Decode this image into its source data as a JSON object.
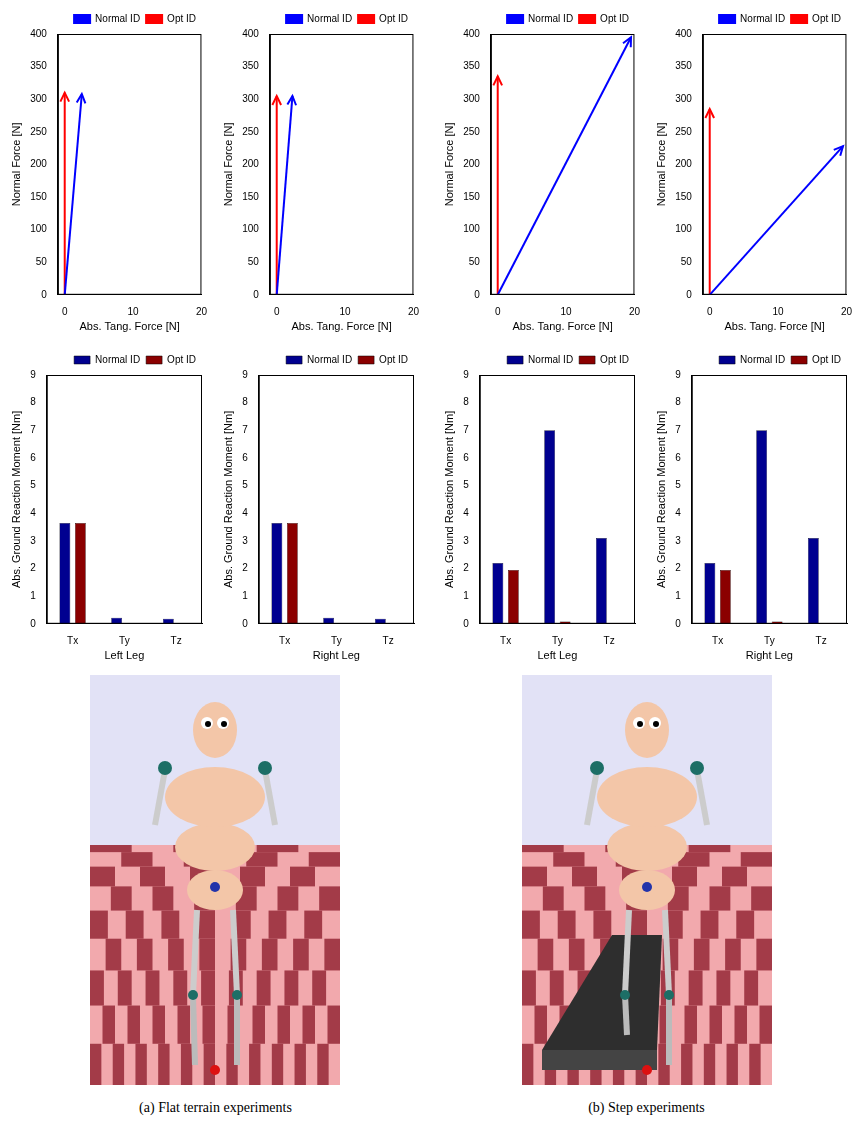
{
  "chart_data": [
    {
      "type": "line",
      "xlabel": "Abs. Tang. Force [N]",
      "ylabel": "Normal Force [N]",
      "xlim": [
        -1,
        20
      ],
      "xticks": [
        0,
        10,
        20
      ],
      "ylim": [
        0,
        400
      ],
      "yticks": [
        0,
        50,
        100,
        150,
        200,
        250,
        300,
        350,
        400
      ],
      "grid": false,
      "legend": "top",
      "series": [
        {
          "name": "Normal ID",
          "color": "#0000ff",
          "marker": "arrow",
          "x": [
            0,
            2.5
          ],
          "values": [
            0,
            308
          ]
        },
        {
          "name": "Opt ID",
          "color": "#ff0000",
          "marker": "arrow",
          "x": [
            0,
            0
          ],
          "values": [
            0,
            310
          ]
        }
      ]
    },
    {
      "type": "line",
      "xlabel": "Abs. Tang. Force [N]",
      "ylabel": "Normal Force [N]",
      "xlim": [
        -1,
        20
      ],
      "xticks": [
        0,
        10,
        20
      ],
      "ylim": [
        0,
        400
      ],
      "yticks": [
        0,
        50,
        100,
        150,
        200,
        250,
        300,
        350,
        400
      ],
      "grid": false,
      "legend": "top",
      "series": [
        {
          "name": "Normal ID",
          "color": "#0000ff",
          "marker": "arrow",
          "x": [
            0,
            2.3
          ],
          "values": [
            0,
            305
          ]
        },
        {
          "name": "Opt ID",
          "color": "#ff0000",
          "marker": "arrow",
          "x": [
            0,
            0
          ],
          "values": [
            0,
            305
          ]
        }
      ]
    },
    {
      "type": "line",
      "xlabel": "Abs. Tang. Force [N]",
      "ylabel": "Normal Force [N]",
      "xlim": [
        -1,
        20
      ],
      "xticks": [
        0,
        10,
        20
      ],
      "ylim": [
        0,
        400
      ],
      "yticks": [
        0,
        50,
        100,
        150,
        200,
        250,
        300,
        350,
        400
      ],
      "grid": false,
      "legend": "top",
      "series": [
        {
          "name": "Normal ID",
          "color": "#0000ff",
          "marker": "arrow",
          "x": [
            0,
            19.5
          ],
          "values": [
            0,
            395
          ]
        },
        {
          "name": "Opt ID",
          "color": "#ff0000",
          "marker": "arrow",
          "x": [
            0,
            0
          ],
          "values": [
            0,
            335
          ]
        }
      ]
    },
    {
      "type": "line",
      "xlabel": "Abs. Tang. Force [N]",
      "ylabel": "Normal Force [N]",
      "xlim": [
        -1,
        20
      ],
      "xticks": [
        0,
        10,
        20
      ],
      "ylim": [
        0,
        400
      ],
      "yticks": [
        0,
        50,
        100,
        150,
        200,
        250,
        300,
        350,
        400
      ],
      "grid": false,
      "legend": "top",
      "series": [
        {
          "name": "Normal ID",
          "color": "#0000ff",
          "marker": "arrow",
          "x": [
            0,
            19.5
          ],
          "values": [
            0,
            228
          ]
        },
        {
          "name": "Opt ID",
          "color": "#ff0000",
          "marker": "arrow",
          "x": [
            0,
            0
          ],
          "values": [
            0,
            285
          ]
        }
      ]
    },
    {
      "type": "bar",
      "xlabel": "Left Leg",
      "ylabel": "Abs. Ground Reaction Moment [Nm]",
      "categories": [
        "Tx",
        "Ty",
        "Tz"
      ],
      "ylim": [
        0,
        9
      ],
      "yticks": [
        0,
        1,
        2,
        3,
        4,
        5,
        6,
        7,
        8,
        9
      ],
      "grid": false,
      "legend": "top",
      "series": [
        {
          "name": "Normal ID",
          "color": "#000090",
          "values": [
            3.65,
            0.22,
            0.18
          ]
        },
        {
          "name": "Opt ID",
          "color": "#8b0000",
          "values": [
            3.65,
            0.0,
            0.0
          ]
        }
      ]
    },
    {
      "type": "bar",
      "xlabel": "Right Leg",
      "ylabel": "Abs. Ground Reaction Moment [Nm]",
      "categories": [
        "Tx",
        "Ty",
        "Tz"
      ],
      "ylim": [
        0,
        9
      ],
      "yticks": [
        0,
        1,
        2,
        3,
        4,
        5,
        6,
        7,
        8,
        9
      ],
      "grid": false,
      "legend": "top",
      "series": [
        {
          "name": "Normal ID",
          "color": "#000090",
          "values": [
            3.65,
            0.22,
            0.18
          ]
        },
        {
          "name": "Opt ID",
          "color": "#8b0000",
          "values": [
            3.65,
            0.0,
            0.0
          ]
        }
      ]
    },
    {
      "type": "bar",
      "xlabel": "Left Leg",
      "ylabel": "Abs. Ground Reaction Moment [Nm]",
      "categories": [
        "Tx",
        "Ty",
        "Tz"
      ],
      "ylim": [
        0,
        9
      ],
      "yticks": [
        0,
        1,
        2,
        3,
        4,
        5,
        6,
        7,
        8,
        9
      ],
      "grid": false,
      "legend": "top",
      "series": [
        {
          "name": "Normal ID",
          "color": "#000090",
          "values": [
            2.2,
            7.0,
            3.1
          ]
        },
        {
          "name": "Opt ID",
          "color": "#8b0000",
          "values": [
            1.95,
            0.08,
            0.02
          ]
        }
      ]
    },
    {
      "type": "bar",
      "xlabel": "Right Leg",
      "ylabel": "Abs. Ground Reaction Moment [Nm]",
      "categories": [
        "Tx",
        "Ty",
        "Tz"
      ],
      "ylim": [
        0,
        9
      ],
      "yticks": [
        0,
        1,
        2,
        3,
        4,
        5,
        6,
        7,
        8,
        9
      ],
      "grid": false,
      "legend": "top",
      "series": [
        {
          "name": "Normal ID",
          "color": "#000090",
          "values": [
            2.2,
            7.0,
            3.1
          ]
        },
        {
          "name": "Opt ID",
          "color": "#8b0000",
          "values": [
            1.95,
            0.08,
            0.02
          ]
        }
      ]
    }
  ],
  "captions": [
    "(a) Flat terrain experiments",
    "(b) Step experiments"
  ]
}
